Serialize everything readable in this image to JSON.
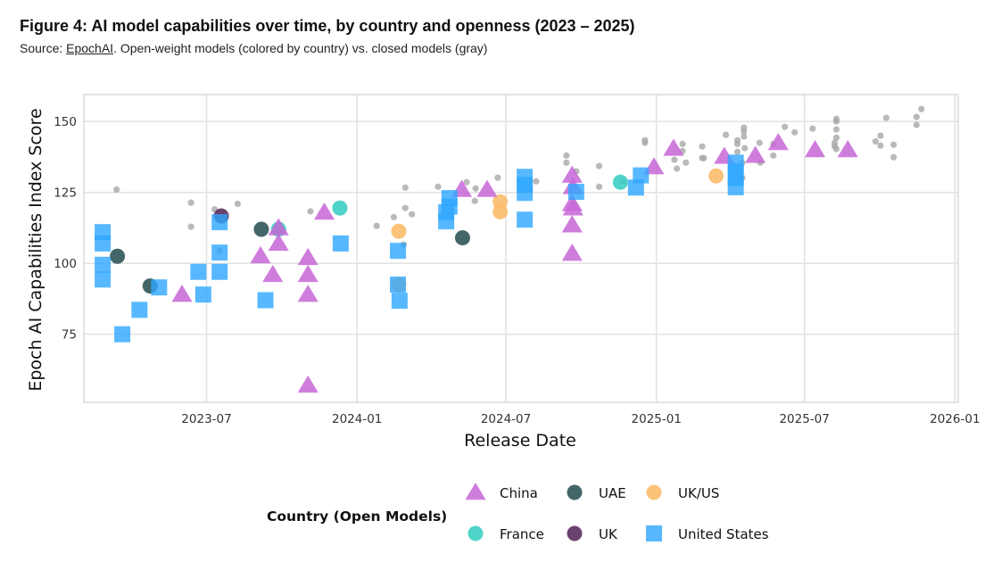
{
  "header": {
    "title": "Figure 4: AI model capabilities over time, by country and openness (2023 – 2025)",
    "subtitle_prefix": "Source: ",
    "subtitle_link": "EpochAI",
    "subtitle_rest": ". Open-weight models (colored by country) vs. closed models (gray)"
  },
  "chart_data": {
    "type": "scatter",
    "xlabel": "Release Date",
    "ylabel": "Epoch AI Capabilities Index Score",
    "xlim": [
      "2023-02-01",
      "2026-01-05"
    ],
    "ylim": [
      51,
      159.5
    ],
    "x_ticks": [
      {
        "date": "2023-07-01",
        "label": "2023-07"
      },
      {
        "date": "2024-01-01",
        "label": "2024-01"
      },
      {
        "date": "2024-07-01",
        "label": "2024-07"
      },
      {
        "date": "2025-01-01",
        "label": "2025-01"
      },
      {
        "date": "2025-07-01",
        "label": "2025-07"
      },
      {
        "date": "2026-01-01",
        "label": "2026-01"
      }
    ],
    "y_ticks": [
      75,
      100,
      125,
      150
    ],
    "grid": true,
    "legend": {
      "title": "Country (Open Models)",
      "placement": "bottom"
    },
    "series": [
      {
        "color": "#a8a8a8",
        "shape": "small-circle",
        "points": [
          {
            "x": "2023-03-13",
            "y": 126
          },
          {
            "x": "2023-06-12",
            "y": 121.4
          },
          {
            "x": "2023-06-12",
            "y": 112.9
          },
          {
            "x": "2023-07-11",
            "y": 119
          },
          {
            "x": "2023-07-17",
            "y": 104.4
          },
          {
            "x": "2023-08-08",
            "y": 121
          },
          {
            "x": "2023-11-05",
            "y": 118.3
          },
          {
            "x": "2024-01-25",
            "y": 113.2
          },
          {
            "x": "2024-02-15",
            "y": 116.3
          },
          {
            "x": "2024-02-29",
            "y": 126.7
          },
          {
            "x": "2024-02-29",
            "y": 119.5
          },
          {
            "x": "2024-03-08",
            "y": 117.3
          },
          {
            "x": "2024-02-27",
            "y": 106.6
          },
          {
            "x": "2024-04-09",
            "y": 127
          },
          {
            "x": "2024-05-14",
            "y": 128.6
          },
          {
            "x": "2024-05-25",
            "y": 126.4
          },
          {
            "x": "2024-05-24",
            "y": 122
          },
          {
            "x": "2024-06-21",
            "y": 130.2
          },
          {
            "x": "2024-08-07",
            "y": 128.9
          },
          {
            "x": "2024-09-13",
            "y": 138
          },
          {
            "x": "2024-09-13",
            "y": 135.5
          },
          {
            "x": "2024-09-25",
            "y": 132.4
          },
          {
            "x": "2024-10-23",
            "y": 134.3
          },
          {
            "x": "2024-10-23",
            "y": 127
          },
          {
            "x": "2024-12-18",
            "y": 142.5
          },
          {
            "x": "2024-12-18",
            "y": 143.4
          },
          {
            "x": "2024-11-21",
            "y": 129
          },
          {
            "x": "2025-02-02",
            "y": 142.1
          },
          {
            "x": "2025-02-02",
            "y": 139.6
          },
          {
            "x": "2025-01-23",
            "y": 136.5
          },
          {
            "x": "2025-01-26",
            "y": 133.4
          },
          {
            "x": "2025-02-06",
            "y": 135.5
          },
          {
            "x": "2025-02-26",
            "y": 141.2
          },
          {
            "x": "2025-02-26",
            "y": 137.1
          },
          {
            "x": "2025-02-28",
            "y": 137.1
          },
          {
            "x": "2025-03-27",
            "y": 145.3
          },
          {
            "x": "2025-04-18",
            "y": 147.8
          },
          {
            "x": "2025-04-18",
            "y": 146.5
          },
          {
            "x": "2025-04-18",
            "y": 144.7
          },
          {
            "x": "2025-04-10",
            "y": 143.4
          },
          {
            "x": "2025-04-10",
            "y": 142.1
          },
          {
            "x": "2025-04-10",
            "y": 139.3
          },
          {
            "x": "2025-04-19",
            "y": 140.6
          },
          {
            "x": "2025-04-16",
            "y": 135.5
          },
          {
            "x": "2025-04-16",
            "y": 130.2
          },
          {
            "x": "2025-05-07",
            "y": 142.5
          },
          {
            "x": "2025-05-08",
            "y": 135.5
          },
          {
            "x": "2025-05-24",
            "y": 142.1
          },
          {
            "x": "2025-05-24",
            "y": 138
          },
          {
            "x": "2025-06-07",
            "y": 148.1
          },
          {
            "x": "2025-06-19",
            "y": 146.2
          },
          {
            "x": "2025-07-11",
            "y": 147.5
          },
          {
            "x": "2025-08-09",
            "y": 150.9
          },
          {
            "x": "2025-08-09",
            "y": 150
          },
          {
            "x": "2025-08-09",
            "y": 147.2
          },
          {
            "x": "2025-08-09",
            "y": 144.3
          },
          {
            "x": "2025-08-07",
            "y": 142.5
          },
          {
            "x": "2025-08-07",
            "y": 141.2
          },
          {
            "x": "2025-08-09",
            "y": 140.3
          },
          {
            "x": "2025-10-09",
            "y": 151.3
          },
          {
            "x": "2025-10-02",
            "y": 145
          },
          {
            "x": "2025-09-26",
            "y": 143
          },
          {
            "x": "2025-10-02",
            "y": 141.5
          },
          {
            "x": "2025-10-18",
            "y": 141.8
          },
          {
            "x": "2025-10-18",
            "y": 137.4
          },
          {
            "x": "2025-11-15",
            "y": 151.6
          },
          {
            "x": "2025-11-15",
            "y": 148.8
          },
          {
            "x": "2025-11-21",
            "y": 154.4
          }
        ]
      },
      {
        "name": "China",
        "color": "#c766d6",
        "shape": "triangle",
        "points": [
          {
            "x": "2023-06-01",
            "y": 89
          },
          {
            "x": "2023-09-05",
            "y": 102.6
          },
          {
            "x": "2023-09-20",
            "y": 96
          },
          {
            "x": "2023-09-27",
            "y": 112.5
          },
          {
            "x": "2023-09-27",
            "y": 107
          },
          {
            "x": "2023-11-02",
            "y": 102
          },
          {
            "x": "2023-11-02",
            "y": 96
          },
          {
            "x": "2023-11-02",
            "y": 89
          },
          {
            "x": "2023-11-02",
            "y": 57
          },
          {
            "x": "2023-11-22",
            "y": 118
          },
          {
            "x": "2024-05-08",
            "y": 126
          },
          {
            "x": "2024-06-08",
            "y": 126
          },
          {
            "x": "2024-09-20",
            "y": 131
          },
          {
            "x": "2024-09-21",
            "y": 127
          },
          {
            "x": "2024-09-20",
            "y": 121
          },
          {
            "x": "2024-09-21",
            "y": 119.5
          },
          {
            "x": "2024-09-20",
            "y": 113.5
          },
          {
            "x": "2024-09-20",
            "y": 103.5
          },
          {
            "x": "2024-12-29",
            "y": 134
          },
          {
            "x": "2025-01-22",
            "y": 140.5
          },
          {
            "x": "2025-03-25",
            "y": 137.7
          },
          {
            "x": "2025-05-02",
            "y": 138
          },
          {
            "x": "2025-05-30",
            "y": 142.5
          },
          {
            "x": "2025-07-14",
            "y": 140
          },
          {
            "x": "2025-08-23",
            "y": 140
          }
        ]
      },
      {
        "name": "UAE",
        "color": "#2f5559",
        "shape": "circle",
        "points": [
          {
            "x": "2023-03-14",
            "y": 102.5
          },
          {
            "x": "2023-04-23",
            "y": 92
          },
          {
            "x": "2023-09-06",
            "y": 112
          },
          {
            "x": "2024-05-09",
            "y": 109
          }
        ]
      },
      {
        "name": "UK/US",
        "color": "#fbbd6c",
        "shape": "circle",
        "points": [
          {
            "x": "2024-02-21",
            "y": 111.3
          },
          {
            "x": "2024-02-21",
            "y": 92.5
          },
          {
            "x": "2024-06-24",
            "y": 121.7
          },
          {
            "x": "2024-06-24",
            "y": 118.2
          },
          {
            "x": "2025-03-15",
            "y": 130.8
          }
        ]
      },
      {
        "name": "France",
        "color": "#3dcfc3",
        "shape": "circle",
        "points": [
          {
            "x": "2023-09-27",
            "y": 112
          },
          {
            "x": "2023-12-11",
            "y": 119.5
          },
          {
            "x": "2024-11-18",
            "y": 128.6
          }
        ]
      },
      {
        "name": "UK",
        "color": "#5b2f5f",
        "shape": "circle",
        "points": [
          {
            "x": "2023-07-19",
            "y": 116.7
          }
        ]
      },
      {
        "name": "United States",
        "color": "#2ea6ff",
        "shape": "square",
        "points": [
          {
            "x": "2023-02-24",
            "y": 111
          },
          {
            "x": "2023-02-24",
            "y": 107
          },
          {
            "x": "2023-02-24",
            "y": 99.5
          },
          {
            "x": "2023-02-24",
            "y": 94.3
          },
          {
            "x": "2023-03-20",
            "y": 75
          },
          {
            "x": "2023-04-10",
            "y": 83.6
          },
          {
            "x": "2023-05-04",
            "y": 91.5
          },
          {
            "x": "2023-06-21",
            "y": 97
          },
          {
            "x": "2023-06-27",
            "y": 89
          },
          {
            "x": "2023-07-17",
            "y": 114.5
          },
          {
            "x": "2023-07-17",
            "y": 103.8
          },
          {
            "x": "2023-07-17",
            "y": 97
          },
          {
            "x": "2023-09-11",
            "y": 87
          },
          {
            "x": "2023-12-12",
            "y": 107
          },
          {
            "x": "2024-02-20",
            "y": 104.4
          },
          {
            "x": "2024-02-20",
            "y": 92.5
          },
          {
            "x": "2024-02-22",
            "y": 86.8
          },
          {
            "x": "2024-04-23",
            "y": 123
          },
          {
            "x": "2024-04-23",
            "y": 120
          },
          {
            "x": "2024-04-19",
            "y": 118
          },
          {
            "x": "2024-04-19",
            "y": 114.8
          },
          {
            "x": "2024-07-24",
            "y": 130.5
          },
          {
            "x": "2024-07-24",
            "y": 127.7
          },
          {
            "x": "2024-07-24",
            "y": 124.8
          },
          {
            "x": "2024-07-24",
            "y": 115.4
          },
          {
            "x": "2024-09-25",
            "y": 125.2
          },
          {
            "x": "2024-12-07",
            "y": 126.7
          },
          {
            "x": "2024-12-13",
            "y": 131
          },
          {
            "x": "2025-04-08",
            "y": 135.5
          },
          {
            "x": "2025-04-08",
            "y": 132.4
          },
          {
            "x": "2025-04-08",
            "y": 130
          },
          {
            "x": "2025-04-08",
            "y": 126.8
          }
        ]
      }
    ]
  }
}
